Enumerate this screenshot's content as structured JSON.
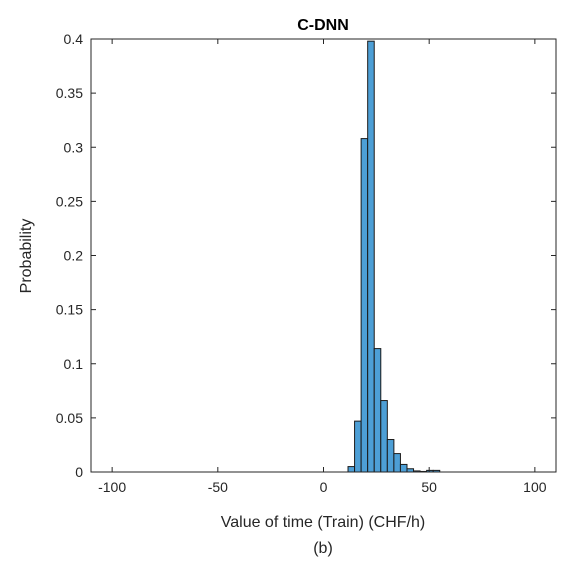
{
  "chart_data": {
    "type": "bar",
    "title": "C-DNN",
    "xlabel": "Value of time (Train) (CHF/h)",
    "ylabel": "Probability",
    "caption": "(b)",
    "xlim": [
      -110,
      110
    ],
    "ylim": [
      0,
      0.4
    ],
    "xticks": [
      -100,
      -50,
      0,
      50,
      100
    ],
    "xtick_labels": [
      "-100",
      "-50",
      "0",
      "50",
      "100"
    ],
    "yticks": [
      0,
      0.05,
      0.1,
      0.15,
      0.2,
      0.25,
      0.3,
      0.35,
      0.4
    ],
    "ytick_labels": [
      "0",
      "0.05",
      "0.1",
      "0.15",
      "0.2",
      "0.25",
      "0.3",
      "0.35",
      "0.4"
    ],
    "grid": false,
    "legend": "none",
    "bin_width": 3.1,
    "bins": [
      {
        "x0": 11.6,
        "x1": 14.7,
        "value": 0.005
      },
      {
        "x0": 14.7,
        "x1": 17.8,
        "value": 0.047
      },
      {
        "x0": 17.8,
        "x1": 20.9,
        "value": 0.308
      },
      {
        "x0": 20.9,
        "x1": 24.0,
        "value": 0.398
      },
      {
        "x0": 24.0,
        "x1": 27.1,
        "value": 0.114
      },
      {
        "x0": 27.1,
        "x1": 30.2,
        "value": 0.066
      },
      {
        "x0": 30.2,
        "x1": 33.3,
        "value": 0.03
      },
      {
        "x0": 33.3,
        "x1": 36.4,
        "value": 0.017
      },
      {
        "x0": 36.4,
        "x1": 39.5,
        "value": 0.007
      },
      {
        "x0": 39.5,
        "x1": 42.6,
        "value": 0.003
      },
      {
        "x0": 42.6,
        "x1": 45.7,
        "value": 0.001
      },
      {
        "x0": 45.7,
        "x1": 48.8,
        "value": 0.0005
      },
      {
        "x0": 48.8,
        "x1": 51.9,
        "value": 0.0015
      },
      {
        "x0": 51.9,
        "x1": 55.0,
        "value": 0.0015
      }
    ],
    "colors": {
      "bar_fill": "#4d9fd6",
      "bar_edge": "#1a1a1a",
      "axis": "#262626"
    }
  }
}
